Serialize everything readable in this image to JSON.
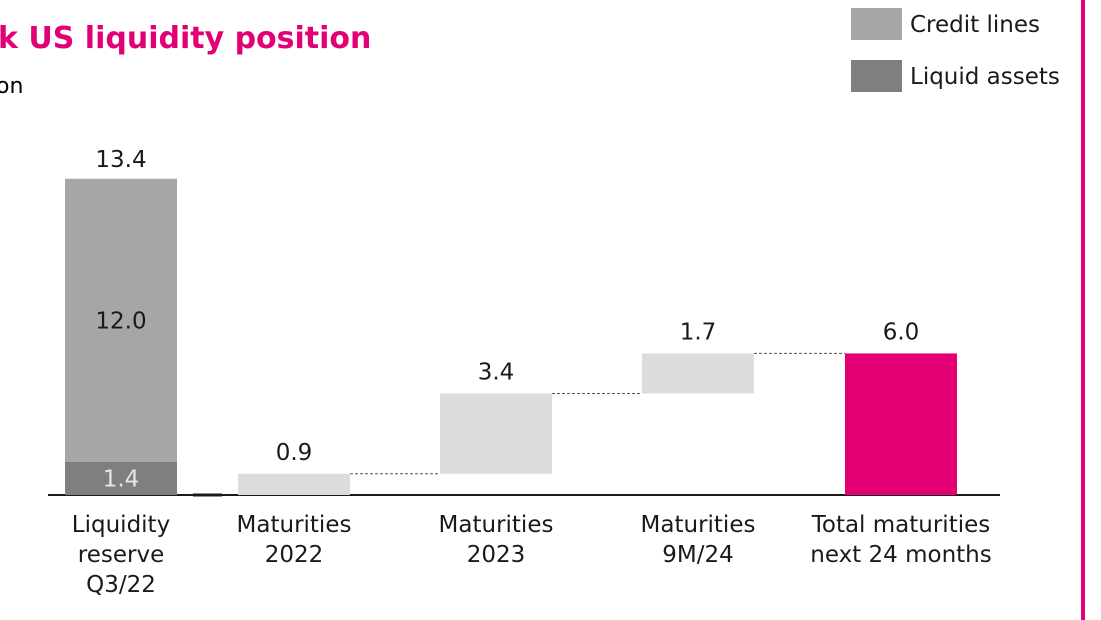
{
  "chart_data": {
    "type": "waterfall",
    "title": "k US liquidity position",
    "subtitle": "on",
    "categories": [
      "Liquidity\nreserve\nQ3/22",
      "Maturities\n2022",
      "Maturities\n2023",
      "Maturities\n9M/24",
      "Total maturities\nnext 24 months"
    ],
    "series": [
      {
        "name": "Liquid assets",
        "color": "#7f7f7f",
        "values": [
          1.4,
          null,
          null,
          null,
          null
        ]
      },
      {
        "name": "Credit lines",
        "color": "#a6a6a6",
        "values": [
          12,
          null,
          null,
          null,
          null
        ],
        "value_labels": [
          "12.0",
          null,
          null,
          null,
          null
        ]
      }
    ],
    "stack_total": {
      "value": 13.4
    },
    "maturities": {
      "color": "#dcdcdc",
      "values": [
        null,
        0.9,
        3.4,
        1.7,
        null
      ]
    },
    "total": {
      "color": "#e20074",
      "value": 6,
      "value_label": "6.0"
    },
    "legend": "top-right",
    "title_color": "#e20074"
  }
}
